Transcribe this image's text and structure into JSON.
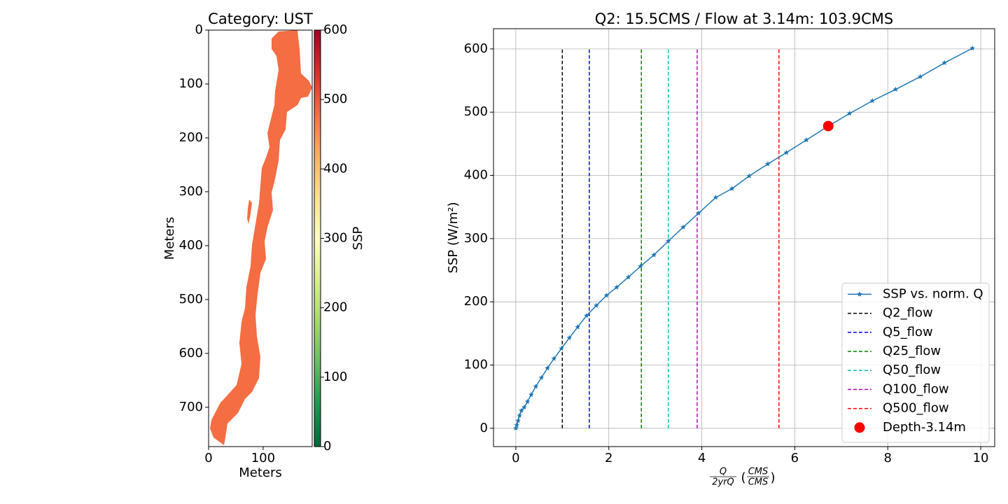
{
  "chart_data": [
    {
      "type": "image",
      "title": "Category: UST",
      "xlabel": "Meters",
      "ylabel": "Meters",
      "xlim": [
        0,
        190
      ],
      "ylim": [
        773,
        0
      ],
      "xticks": [
        0,
        100
      ],
      "yticks": [
        0,
        100,
        200,
        300,
        400,
        500,
        600,
        700
      ],
      "fill": "#f46d43",
      "colorbar": {
        "label": "SSP",
        "lim": [
          0,
          600
        ],
        "ticks": [
          0,
          100,
          200,
          300,
          400,
          500,
          600
        ],
        "colormap": "RdYlGn_r"
      }
    },
    {
      "type": "line",
      "title": "Q2: 15.5CMS / Flow at 3.14m: 103.9CMS",
      "xlabel": {
        "num": "Q",
        "den": "2yrQ",
        "unit_num": "CMS",
        "unit_den": "CMS"
      },
      "ylabel": "SSP (W/m²)",
      "xlim": [
        -0.48,
        10.3
      ],
      "ylim": [
        -29,
        632
      ],
      "xticks": [
        0,
        2,
        4,
        6,
        8,
        10
      ],
      "yticks": [
        0,
        100,
        200,
        300,
        400,
        500,
        600
      ],
      "grid": true,
      "legend": "lower right",
      "series": [
        {
          "name": "SSP vs. norm. Q",
          "color": "#1f77b4",
          "marker": "star",
          "x": [
            0,
            0.02,
            0.05,
            0.08,
            0.12,
            0.18,
            0.25,
            0.33,
            0.43,
            0.55,
            0.68,
            0.82,
            0.98,
            1.15,
            1.33,
            1.52,
            1.73,
            1.95,
            2.17,
            2.42,
            2.68,
            2.97,
            3.28,
            3.6,
            3.93,
            4.3,
            4.65,
            5.02,
            5.42,
            5.82,
            6.25,
            6.7,
            7.18,
            7.67,
            8.17,
            8.7,
            9.22,
            9.82
          ],
          "values": [
            0,
            5,
            12,
            20,
            28,
            33,
            42,
            53,
            66,
            80,
            95,
            110,
            126,
            143,
            160,
            178,
            194,
            210,
            223,
            239,
            256,
            274,
            296,
            318,
            340,
            365,
            379,
            399,
            418,
            436,
            456,
            477,
            498,
            518,
            536,
            556,
            578,
            601
          ]
        }
      ],
      "vline_span": [
        0,
        600
      ],
      "vlines": [
        {
          "name": "Q2_flow",
          "color": "black",
          "x": 1
        },
        {
          "name": "Q5_flow",
          "color": "blue",
          "x": 1.58
        },
        {
          "name": "Q25_flow",
          "color": "green",
          "x": 2.7
        },
        {
          "name": "Q50_flow",
          "color": "#00bfbf",
          "x": 3.28
        },
        {
          "name": "Q100_flow",
          "color": "#bf00bf",
          "x": 3.9
        },
        {
          "name": "Q500_flow",
          "color": "red",
          "x": 5.66
        }
      ],
      "points": [
        {
          "name": "Depth-3.14m",
          "color": "red",
          "x": 6.72,
          "value": 478
        }
      ]
    }
  ]
}
